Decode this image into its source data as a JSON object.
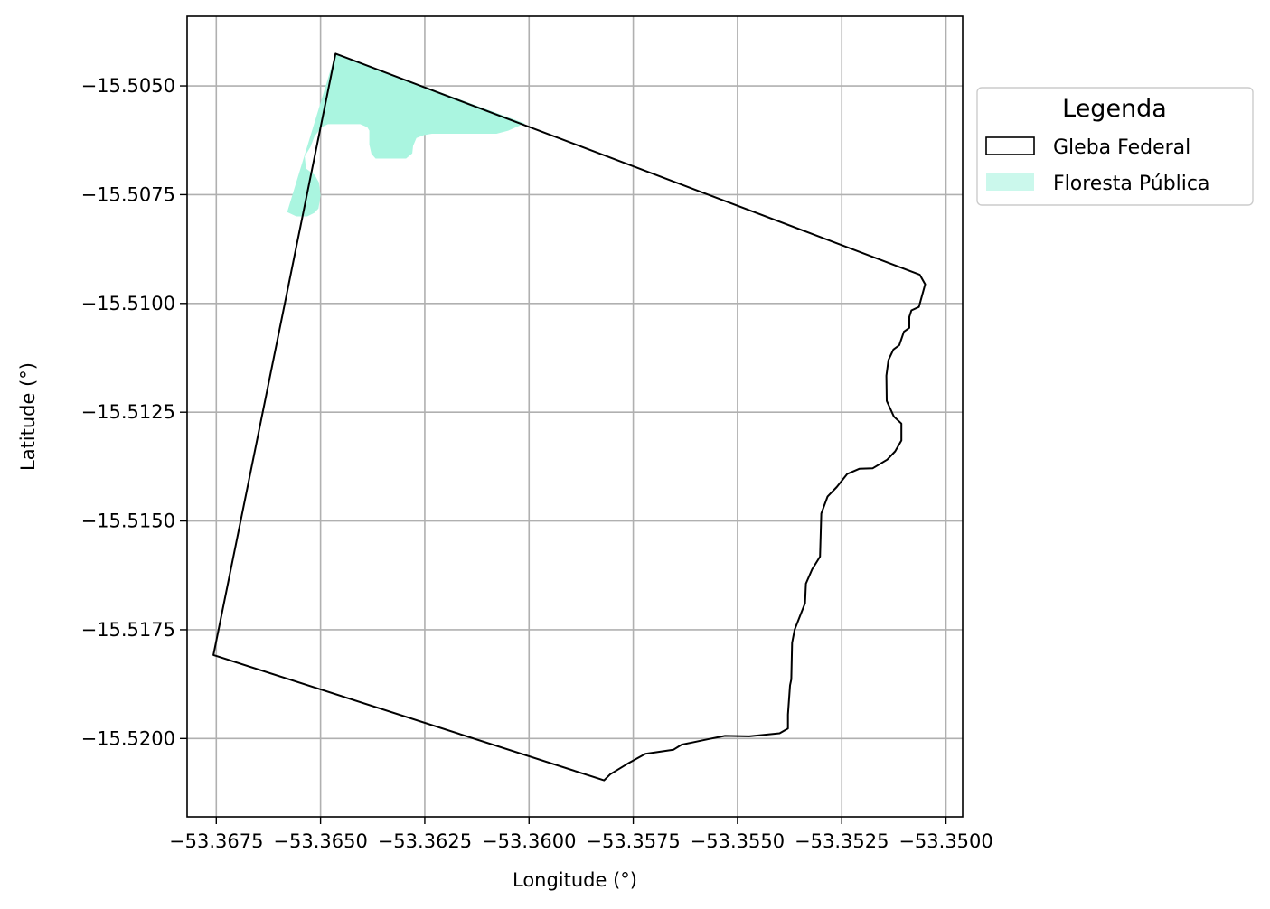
{
  "chart_data": {
    "type": "map",
    "xlabel": "Longitude (°)",
    "ylabel": "Latitude (°)",
    "xlim": [
      -53.3682,
      -53.3496
    ],
    "ylim": [
      -15.5218,
      -15.5034
    ],
    "grid": true,
    "x_ticks": [
      -53.3675,
      -53.365,
      -53.3625,
      -53.36,
      -53.3575,
      -53.355,
      -53.3525,
      -53.35
    ],
    "x_tick_labels": [
      "−53.3675",
      "−53.3650",
      "−53.3625",
      "−53.3600",
      "−53.3575",
      "−53.3550",
      "−53.3525",
      "−53.3500"
    ],
    "y_ticks": [
      -15.505,
      -15.5075,
      -15.51,
      -15.5125,
      -15.515,
      -15.5175,
      -15.52
    ],
    "y_tick_labels": [
      "−15.5050",
      "−15.5075",
      "−15.5100",
      "−15.5125",
      "−15.5150",
      "−15.5175",
      "−15.5200"
    ],
    "legend": {
      "title": "Legenda",
      "placement": "outside-right-top",
      "entries": [
        {
          "label": "Gleba Federal",
          "style": "outline",
          "color": "#000000"
        },
        {
          "label": "Floresta Pública",
          "style": "fill",
          "color": "#aaf5e0"
        }
      ]
    },
    "layers": [
      {
        "name": "Gleba Federal",
        "type": "polygon",
        "fill": "none",
        "stroke": "#000000",
        "coordinates": [
          [
            -53.36464,
            -15.50426
          ],
          [
            -53.35063,
            -15.50934
          ],
          [
            -53.3505,
            -15.50956
          ],
          [
            -53.35065,
            -15.51008
          ],
          [
            -53.35083,
            -15.51016
          ],
          [
            -53.35088,
            -15.51031
          ],
          [
            -53.35088,
            -15.51056
          ],
          [
            -53.35101,
            -15.51065
          ],
          [
            -53.35112,
            -15.51096
          ],
          [
            -53.35126,
            -15.51106
          ],
          [
            -53.35138,
            -15.5113
          ],
          [
            -53.35143,
            -15.51166
          ],
          [
            -53.35142,
            -15.51224
          ],
          [
            -53.35125,
            -15.5126
          ],
          [
            -53.35107,
            -15.51276
          ],
          [
            -53.35107,
            -15.51315
          ],
          [
            -53.35122,
            -15.5134
          ],
          [
            -53.35141,
            -15.51359
          ],
          [
            -53.35176,
            -15.51379
          ],
          [
            -53.35208,
            -15.5138
          ],
          [
            -53.35237,
            -15.51392
          ],
          [
            -53.35262,
            -15.51422
          ],
          [
            -53.35284,
            -15.51444
          ],
          [
            -53.35299,
            -15.51483
          ],
          [
            -53.35302,
            -15.51582
          ],
          [
            -53.35321,
            -15.51611
          ],
          [
            -53.35336,
            -15.51644
          ],
          [
            -53.35338,
            -15.51689
          ],
          [
            -53.35363,
            -15.5175
          ],
          [
            -53.35369,
            -15.5178
          ],
          [
            -53.35371,
            -15.51864
          ],
          [
            -53.35374,
            -15.51878
          ],
          [
            -53.35379,
            -15.51945
          ],
          [
            -53.35379,
            -15.51977
          ],
          [
            -53.35399,
            -15.51988
          ],
          [
            -53.35472,
            -15.51995
          ],
          [
            -53.3553,
            -15.51994
          ],
          [
            -53.35568,
            -15.52001
          ],
          [
            -53.35634,
            -15.52014
          ],
          [
            -53.35654,
            -15.52026
          ],
          [
            -53.35721,
            -15.52035
          ],
          [
            -53.35764,
            -15.52058
          ],
          [
            -53.35805,
            -15.52082
          ],
          [
            -53.3582,
            -15.52096
          ]
        ],
        "closed": true,
        "closing_vertex": [
          -53.36757,
          -15.51808
        ]
      },
      {
        "name": "Floresta Pública",
        "type": "polygon",
        "fill": "#aaf5e0",
        "stroke": "none",
        "coordinates": [
          [
            -53.36464,
            -15.50426
          ],
          [
            -53.3601,
            -15.50586
          ],
          [
            -53.3605,
            -15.50603
          ],
          [
            -53.36078,
            -15.5061
          ],
          [
            -53.36233,
            -15.5061
          ],
          [
            -53.36252,
            -15.50613
          ],
          [
            -53.3627,
            -15.5062
          ],
          [
            -53.36278,
            -15.50638
          ],
          [
            -53.3628,
            -15.50655
          ],
          [
            -53.36295,
            -15.50667
          ],
          [
            -53.36368,
            -15.50667
          ],
          [
            -53.36378,
            -15.50656
          ],
          [
            -53.36383,
            -15.50635
          ],
          [
            -53.36383,
            -15.50603
          ],
          [
            -53.36388,
            -15.50595
          ],
          [
            -53.36405,
            -15.50588
          ],
          [
            -53.36482,
            -15.50588
          ],
          [
            -53.36498,
            -15.50595
          ],
          [
            -53.36515,
            -15.50617
          ],
          [
            -53.36524,
            -15.5064
          ],
          [
            -53.36538,
            -15.50662
          ],
          [
            -53.36535,
            -15.5069
          ],
          [
            -53.36514,
            -15.50705
          ],
          [
            -53.36504,
            -15.50722
          ],
          [
            -53.365,
            -15.50752
          ],
          [
            -53.36505,
            -15.50782
          ],
          [
            -53.36515,
            -15.50792
          ],
          [
            -53.36532,
            -15.508
          ],
          [
            -53.36558,
            -15.508
          ],
          [
            -53.3658,
            -15.5079
          ]
        ]
      }
    ]
  }
}
